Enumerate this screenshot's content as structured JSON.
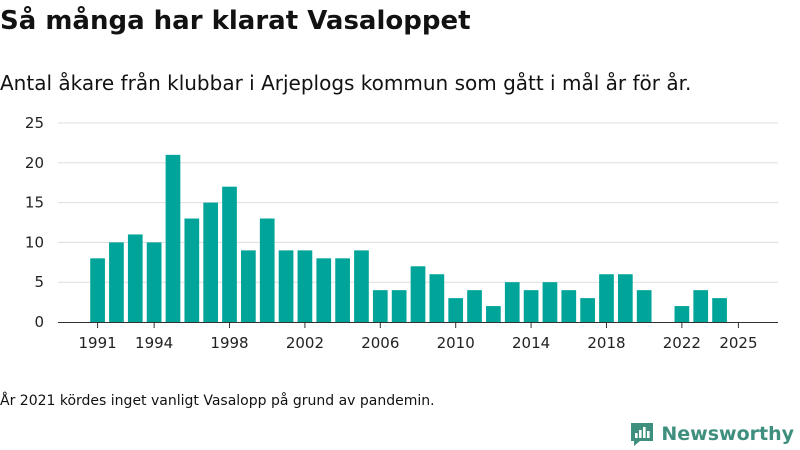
{
  "title": "Så många har klarat Vasaloppet",
  "subtitle": "Antal åkare från klubbar i Arjeplogs kommun som gått i mål år för år.",
  "note": "År 2021 kördes inget vanligt Vasalopp på grund av pandemin.",
  "brand": {
    "name": "Newsworthy",
    "icon": "newsworthy-logo-icon"
  },
  "colors": {
    "bar": "#00a499",
    "grid": "#dddddd",
    "text": "#121212",
    "brand": "#3f8f7f"
  },
  "chart_data": {
    "type": "bar",
    "title": "Så många har klarat Vasaloppet",
    "xlabel": "",
    "ylabel": "",
    "ylim": [
      0,
      25
    ],
    "xlim": [
      1988.9,
      2027.1
    ],
    "yticks": [
      0,
      5,
      10,
      15,
      20,
      25
    ],
    "xticks": [
      1991,
      1994,
      1998,
      2002,
      2006,
      2010,
      2014,
      2018,
      2022,
      2025
    ],
    "categories": [
      1991,
      1992,
      1993,
      1994,
      1995,
      1996,
      1997,
      1998,
      1999,
      2000,
      2001,
      2002,
      2003,
      2004,
      2005,
      2006,
      2007,
      2008,
      2009,
      2010,
      2011,
      2012,
      2013,
      2014,
      2015,
      2016,
      2017,
      2018,
      2019,
      2020,
      2022,
      2023,
      2024
    ],
    "values": [
      8,
      10,
      11,
      10,
      21,
      13,
      15,
      17,
      9,
      13,
      9,
      9,
      8,
      8,
      9,
      4,
      4,
      7,
      6,
      3,
      4,
      2,
      5,
      4,
      5,
      4,
      3,
      6,
      6,
      4,
      2,
      4,
      3
    ]
  }
}
